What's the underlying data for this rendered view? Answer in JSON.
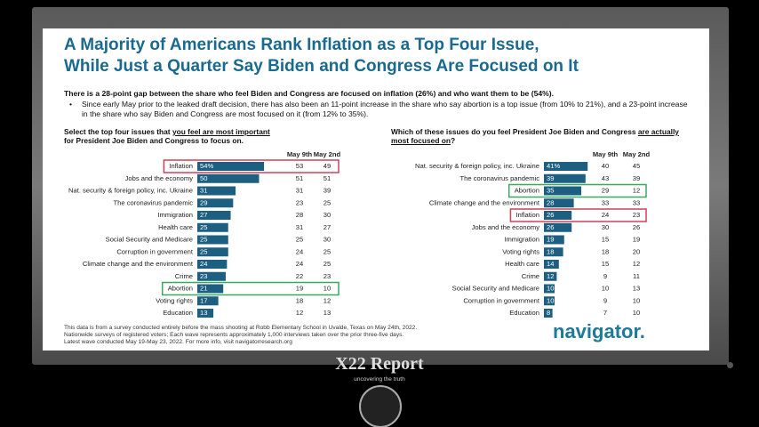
{
  "slide": {
    "title_lines": [
      "A Majority of Americans Rank Inflation as a Top Four Issue,",
      "While Just a Quarter Say Biden and Congress Are Focused on It"
    ],
    "subtitle": "There is a 28-point gap between the share who feel Biden and Congress are focused on inflation (26%) and who want them to be (54%).",
    "bullet": "Since early May prior to the leaked draft decision, there has also been an 11-point increase in the share who say abortion is a top issue (from 10% to 21%), and a 23-point increase in the share who say Biden and Congress are most focused on it (from 12% to 35%).",
    "notes": [
      "This data is from a survey conducted entirely before the mass shooting at Robb Elementary School in Uvalde, Texas on May 24th, 2022.",
      "Nationwide surveys of registered voters; Each wave represents approximately 1,000 interviews taken over the prior three-five days.",
      "Latest wave conducted May 19-May 23, 2022. For more info, visit navigatorresearch.org"
    ],
    "logo": "navigator."
  },
  "overlay": {
    "brand": "X22 Report",
    "tagline": "uncovering the truth"
  },
  "chart_data": [
    {
      "type": "bar",
      "orientation": "horizontal",
      "question_parts": [
        "Select the top four issues that ",
        "you feel are most important",
        " for President Joe Biden and Congress to focus on."
      ],
      "categories": [
        "Inflation",
        "Jobs and the economy",
        "Nat. security & foreign policy, inc. Ukraine",
        "The coronavirus pandemic",
        "Immigration",
        "Health care",
        "Social Security and Medicare",
        "Corruption in government",
        "Climate change and the environment",
        "Crime",
        "Abortion",
        "Voting rights",
        "Education"
      ],
      "values": [
        54,
        50,
        31,
        29,
        27,
        25,
        25,
        25,
        24,
        23,
        21,
        17,
        13
      ],
      "value_labels": [
        "54%",
        "50",
        "31",
        "29",
        "27",
        "25",
        "25",
        "25",
        "24",
        "23",
        "21",
        "17",
        "13"
      ],
      "color": "#1d5f80",
      "columns": [
        {
          "name": "May 9th",
          "values": [
            53,
            51,
            31,
            23,
            28,
            31,
            25,
            24,
            24,
            22,
            19,
            18,
            12
          ]
        },
        {
          "name": "May 2nd",
          "values": [
            49,
            51,
            39,
            25,
            30,
            27,
            30,
            25,
            25,
            23,
            10,
            12,
            13
          ]
        }
      ],
      "highlights": [
        {
          "index": 0,
          "color": "#d0405a"
        },
        {
          "index": 10,
          "color": "#3aa860"
        }
      ]
    },
    {
      "type": "bar",
      "orientation": "horizontal",
      "question_parts": [
        "Which of these issues do you feel President Joe Biden and Congress ",
        "are actually most focused on",
        "?"
      ],
      "categories": [
        "Nat. security & foreign policy, inc. Ukraine",
        "The coronavirus pandemic",
        "Abortion",
        "Climate change and the environment",
        "Inflation",
        "Jobs and the economy",
        "Immigration",
        "Voting rights",
        "Health care",
        "Crime",
        "Social Security and Medicare",
        "Corruption in government",
        "Education"
      ],
      "values": [
        41,
        39,
        35,
        28,
        26,
        26,
        19,
        18,
        14,
        12,
        10,
        10,
        8
      ],
      "value_labels": [
        "41%",
        "39",
        "35",
        "28",
        "26",
        "26",
        "19",
        "18",
        "14",
        "12",
        "10",
        "10",
        "8"
      ],
      "color": "#1d5f80",
      "columns": [
        {
          "name": "May 9th",
          "values": [
            40,
            43,
            29,
            33,
            24,
            30,
            15,
            18,
            15,
            9,
            10,
            9,
            7
          ]
        },
        {
          "name": "May 2nd",
          "values": [
            45,
            39,
            12,
            33,
            23,
            26,
            19,
            20,
            12,
            11,
            13,
            10,
            10
          ]
        }
      ],
      "highlights": [
        {
          "index": 2,
          "color": "#3aa860"
        },
        {
          "index": 4,
          "color": "#d0405a"
        }
      ]
    }
  ]
}
